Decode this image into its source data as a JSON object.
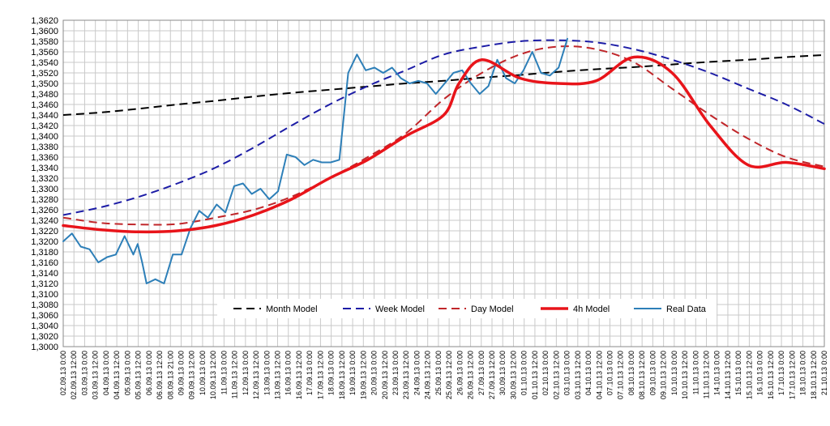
{
  "chart_data": {
    "type": "line",
    "title": "",
    "xlabel": "",
    "ylabel": "",
    "ylim": [
      1.3,
      1.362
    ],
    "grid": true,
    "legend_position": "bottom-center (inside plot area)",
    "y_ticks": [
      "1,3000",
      "1,3020",
      "1,3040",
      "1,3060",
      "1,3080",
      "1,3100",
      "1,3120",
      "1,3140",
      "1,3160",
      "1,3180",
      "1,3200",
      "1,3220",
      "1,3240",
      "1,3260",
      "1,3280",
      "1,3300",
      "1,3320",
      "1,3340",
      "1,3360",
      "1,3380",
      "1,3400",
      "1,3420",
      "1,3440",
      "1,3460",
      "1,3480",
      "1,3500",
      "1,3520",
      "1,3540",
      "1,3560",
      "1,3580",
      "1,3600",
      "1,3620"
    ],
    "x_labels": [
      "02.09.13 0:00",
      "02.09.13 12:00",
      "03.09.13 0:00",
      "03.09.13 12:00",
      "04.09.13 0:00",
      "04.09.13 12:00",
      "05.09.13 0:00",
      "05.09.13 12:00",
      "06.09.13 0:00",
      "06.09.13 12:00",
      "08.09.13 21:00",
      "09.09.13 0:00",
      "09.09.13 12:00",
      "10.09.13 0:00",
      "10.09.13 12:00",
      "11.09.13 0:00",
      "11.09.13 12:00",
      "12.09.13 0:00",
      "12.09.13 12:00",
      "13.09.13 0:00",
      "13.09.13 12:00",
      "16.09.13 0:00",
      "16.09.13 12:00",
      "17.09.13 0:00",
      "17.09.13 12:00",
      "18.09.13 0:00",
      "18.09.13 12:00",
      "19.09.13 0:00",
      "19.09.13 12:00",
      "20.09.13 0:00",
      "20.09.13 12:00",
      "23.09.13 0:00",
      "23.09.13 12:00",
      "24.09.13 0:00",
      "24.09.13 12:00",
      "25.09.13 0:00",
      "25.09.13 12:00",
      "26.09.13 0:00",
      "26.09.13 12:00",
      "27.09.13 0:00",
      "27.09.13 12:00",
      "30.09.13 0:00",
      "30.09.13 12:00",
      "01.10.13 0:00",
      "01.10.13 12:00",
      "02.10.13 0:00",
      "02.10.13 12:00",
      "03.10.13 0:00",
      "03.10.13 12:00",
      "04.10.13 0:00",
      "04.10.13 12:00",
      "07.10.13 0:00",
      "07.10.13 12:00",
      "08.10.13 0:00",
      "08.10.13 12:00",
      "09.10.13 0:00",
      "09.10.13 12:00",
      "10.10.13 0:00",
      "10.10.13 12:00",
      "11.10.13 0:00",
      "11.10.13 12:00",
      "14.10.13 0:00",
      "14.10.13 12:00",
      "15.10.13 0:00",
      "15.10.13 12:00",
      "16.10.13 0:00",
      "16.10.13 12:00",
      "17.10.13 0:00",
      "17.10.13 12:00",
      "18.10.13 0:00",
      "18.10.13 12:00",
      "21.10.13 0:00"
    ],
    "series": [
      {
        "name": "Month Model",
        "color": "#000000",
        "style": "dashed",
        "width": 2,
        "values": [
          [
            0,
            1.344
          ],
          [
            5,
            1.3445
          ],
          [
            10,
            1.3452
          ],
          [
            15,
            1.346
          ],
          [
            20,
            1.3467
          ],
          [
            25,
            1.3475
          ],
          [
            30,
            1.3482
          ],
          [
            35,
            1.3488
          ],
          [
            40,
            1.3494
          ],
          [
            45,
            1.35
          ],
          [
            50,
            1.3505
          ],
          [
            55,
            1.3511
          ],
          [
            60,
            1.3516
          ],
          [
            65,
            1.3522
          ],
          [
            70,
            1.3527
          ],
          [
            75,
            1.3531
          ],
          [
            80,
            1.3536
          ],
          [
            85,
            1.3541
          ],
          [
            90,
            1.3545
          ],
          [
            95,
            1.355
          ],
          [
            100,
            1.3554
          ]
        ]
      },
      {
        "name": "Week Model",
        "color": "#1c1ca6",
        "style": "dashed",
        "width": 2,
        "values": [
          [
            0,
            1.325
          ],
          [
            5,
            1.3265
          ],
          [
            10,
            1.3285
          ],
          [
            15,
            1.331
          ],
          [
            20,
            1.334
          ],
          [
            25,
            1.3378
          ],
          [
            30,
            1.342
          ],
          [
            35,
            1.346
          ],
          [
            40,
            1.3495
          ],
          [
            45,
            1.3525
          ],
          [
            50,
            1.3555
          ],
          [
            55,
            1.357
          ],
          [
            60,
            1.358
          ],
          [
            65,
            1.3582
          ],
          [
            70,
            1.3578
          ],
          [
            75,
            1.3565
          ],
          [
            80,
            1.3545
          ],
          [
            85,
            1.352
          ],
          [
            90,
            1.349
          ],
          [
            95,
            1.346
          ],
          [
            100,
            1.3423
          ]
        ]
      },
      {
        "name": "Day Model",
        "color": "#c0262a",
        "style": "dashed",
        "width": 2,
        "values": [
          [
            0,
            1.3245
          ],
          [
            5,
            1.3235
          ],
          [
            10,
            1.3232
          ],
          [
            15,
            1.3233
          ],
          [
            20,
            1.3245
          ],
          [
            25,
            1.326
          ],
          [
            30,
            1.3285
          ],
          [
            35,
            1.332
          ],
          [
            40,
            1.336
          ],
          [
            45,
            1.3405
          ],
          [
            50,
            1.347
          ],
          [
            55,
            1.352
          ],
          [
            60,
            1.3555
          ],
          [
            65,
            1.357
          ],
          [
            70,
            1.3565
          ],
          [
            75,
            1.354
          ],
          [
            80,
            1.349
          ],
          [
            85,
            1.344
          ],
          [
            90,
            1.3395
          ],
          [
            95,
            1.336
          ],
          [
            100,
            1.3342
          ]
        ]
      },
      {
        "name": "4h Model",
        "color": "#e8141a",
        "style": "solid",
        "width": 3.5,
        "values": [
          [
            0,
            1.323
          ],
          [
            5,
            1.3222
          ],
          [
            10,
            1.3218
          ],
          [
            15,
            1.322
          ],
          [
            20,
            1.323
          ],
          [
            25,
            1.325
          ],
          [
            30,
            1.328
          ],
          [
            35,
            1.332
          ],
          [
            40,
            1.3355
          ],
          [
            45,
            1.34
          ],
          [
            50,
            1.344
          ],
          [
            52,
            1.35
          ],
          [
            55,
            1.3545
          ],
          [
            60,
            1.351
          ],
          [
            65,
            1.35
          ],
          [
            70,
            1.3505
          ],
          [
            75,
            1.355
          ],
          [
            80,
            1.352
          ],
          [
            85,
            1.342
          ],
          [
            90,
            1.3345
          ],
          [
            95,
            1.335
          ],
          [
            100,
            1.3338
          ]
        ]
      },
      {
        "name": "Real Data",
        "color": "#2d7fb8",
        "style": "solid",
        "width": 2,
        "values": [
          [
            0,
            1.32
          ],
          [
            2,
            1.3215
          ],
          [
            4,
            1.319
          ],
          [
            6,
            1.3185
          ],
          [
            8,
            1.316
          ],
          [
            10,
            1.317
          ],
          [
            12,
            1.3175
          ],
          [
            14,
            1.321
          ],
          [
            16,
            1.3175
          ],
          [
            17,
            1.3195
          ],
          [
            18,
            1.316
          ],
          [
            19,
            1.312
          ],
          [
            21,
            1.3128
          ],
          [
            23,
            1.312
          ],
          [
            25,
            1.3175
          ],
          [
            27,
            1.3175
          ],
          [
            29,
            1.3225
          ],
          [
            31,
            1.3258
          ],
          [
            33,
            1.3245
          ],
          [
            35,
            1.327
          ],
          [
            37,
            1.3255
          ],
          [
            39,
            1.3305
          ],
          [
            41,
            1.331
          ],
          [
            43,
            1.329
          ],
          [
            45,
            1.33
          ],
          [
            47,
            1.328
          ],
          [
            49,
            1.3295
          ],
          [
            51,
            1.3365
          ],
          [
            53,
            1.336
          ],
          [
            55,
            1.3345
          ],
          [
            57,
            1.3355
          ],
          [
            59,
            1.335
          ],
          [
            61,
            1.335
          ],
          [
            63,
            1.3355
          ],
          [
            65,
            1.352
          ],
          [
            67,
            1.3555
          ],
          [
            69,
            1.3525
          ],
          [
            71,
            1.353
          ],
          [
            73,
            1.352
          ],
          [
            75,
            1.353
          ],
          [
            77,
            1.351
          ],
          [
            79,
            1.35
          ],
          [
            81,
            1.3505
          ],
          [
            83,
            1.35
          ],
          [
            85,
            1.348
          ],
          [
            87,
            1.35
          ],
          [
            89,
            1.352
          ],
          [
            91,
            1.3525
          ],
          [
            93,
            1.35
          ],
          [
            95,
            1.348
          ],
          [
            97,
            1.3495
          ],
          [
            99,
            1.3545
          ],
          [
            101,
            1.351
          ],
          [
            103,
            1.35
          ],
          [
            105,
            1.3525
          ],
          [
            107,
            1.356
          ],
          [
            109,
            1.352
          ],
          [
            111,
            1.3515
          ],
          [
            113,
            1.353
          ],
          [
            115,
            1.3585
          ]
        ]
      }
    ]
  }
}
